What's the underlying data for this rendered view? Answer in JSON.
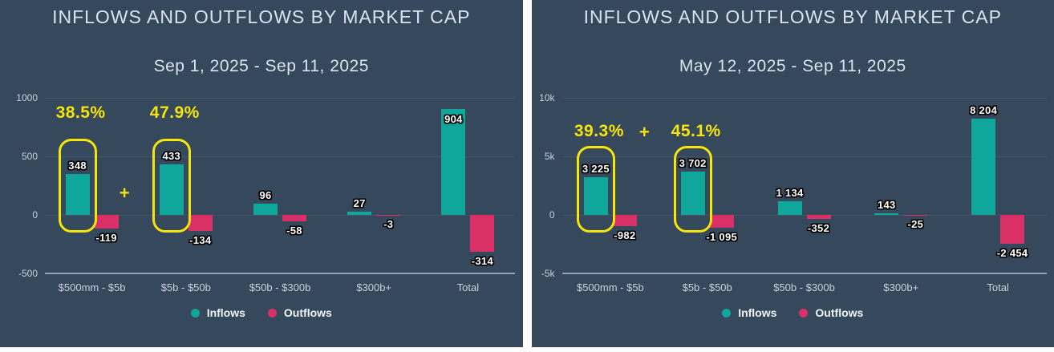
{
  "colors": {
    "page_background": "#ffffff",
    "panel_background": "#35485c",
    "inflow_teal": "#0fa69c",
    "outflow_pink": "#d93067",
    "highlight_yellow": "#f5e50a",
    "title_text": "#d9e4ec",
    "axis_text": "#c7d2da",
    "gridline": "#42566b",
    "axis_line": "#90a3b2"
  },
  "chart_data": [
    {
      "type": "bar",
      "title": "INFLOWS AND OUTFLOWS BY MARKET CAP",
      "subtitle": "Sep 1, 2025 - Sep 11, 2025",
      "categories": [
        "$500mm - $5b",
        "$5b - $50b",
        "$50b - $300b",
        "$300b+",
        "Total"
      ],
      "series": [
        {
          "name": "Inflows",
          "color": "#0fa69c",
          "values": [
            348,
            433,
            96,
            27,
            904
          ],
          "labels": [
            "348",
            "433",
            "96",
            "27",
            "904"
          ]
        },
        {
          "name": "Outflows",
          "color": "#d93067",
          "values": [
            -119,
            -134,
            -58,
            -3,
            -314
          ],
          "labels": [
            "-119",
            "-134",
            "-58",
            "-3",
            "-314"
          ]
        }
      ],
      "ylim": [
        -500,
        1000
      ],
      "y_ticks": [
        {
          "value": 1000,
          "label": "1000"
        },
        {
          "value": 500,
          "label": "500"
        },
        {
          "value": 0,
          "label": "0"
        },
        {
          "value": -500,
          "label": "-500"
        }
      ],
      "grid": true,
      "legend_position": "bottom-center",
      "annotations": {
        "highlight_color": "#f5e50a",
        "plus_sign": "+",
        "plus_inline": false,
        "highlights": [
          {
            "category_index": 0,
            "percent": "38.5%"
          },
          {
            "category_index": 1,
            "percent": "47.9%"
          }
        ]
      }
    },
    {
      "type": "bar",
      "title": "INFLOWS AND OUTFLOWS BY MARKET CAP",
      "subtitle": "May 12, 2025 - Sep 11, 2025",
      "categories": [
        "$500mm - $5b",
        "$5b - $50b",
        "$50b - $300b",
        "$300b+",
        "Total"
      ],
      "series": [
        {
          "name": "Inflows",
          "color": "#0fa69c",
          "values": [
            3225,
            3702,
            1134,
            143,
            8204
          ],
          "labels": [
            "3 225",
            "3 702",
            "1 134",
            "143",
            "8 204"
          ]
        },
        {
          "name": "Outflows",
          "color": "#d93067",
          "values": [
            -982,
            -1095,
            -352,
            -25,
            -2454
          ],
          "labels": [
            "-982",
            "-1 095",
            "-352",
            "-25",
            "-2 454"
          ]
        }
      ],
      "ylim": [
        -5000,
        10000
      ],
      "y_ticks": [
        {
          "value": 10000,
          "label": "10k"
        },
        {
          "value": 5000,
          "label": "5k"
        },
        {
          "value": 0,
          "label": "0"
        },
        {
          "value": -5000,
          "label": "-5k"
        }
      ],
      "grid": true,
      "legend_position": "bottom-center",
      "annotations": {
        "highlight_color": "#f5e50a",
        "plus_sign": "+",
        "plus_inline": true,
        "highlights": [
          {
            "category_index": 0,
            "percent": "39.3%"
          },
          {
            "category_index": 1,
            "percent": "45.1%"
          }
        ]
      }
    }
  ]
}
